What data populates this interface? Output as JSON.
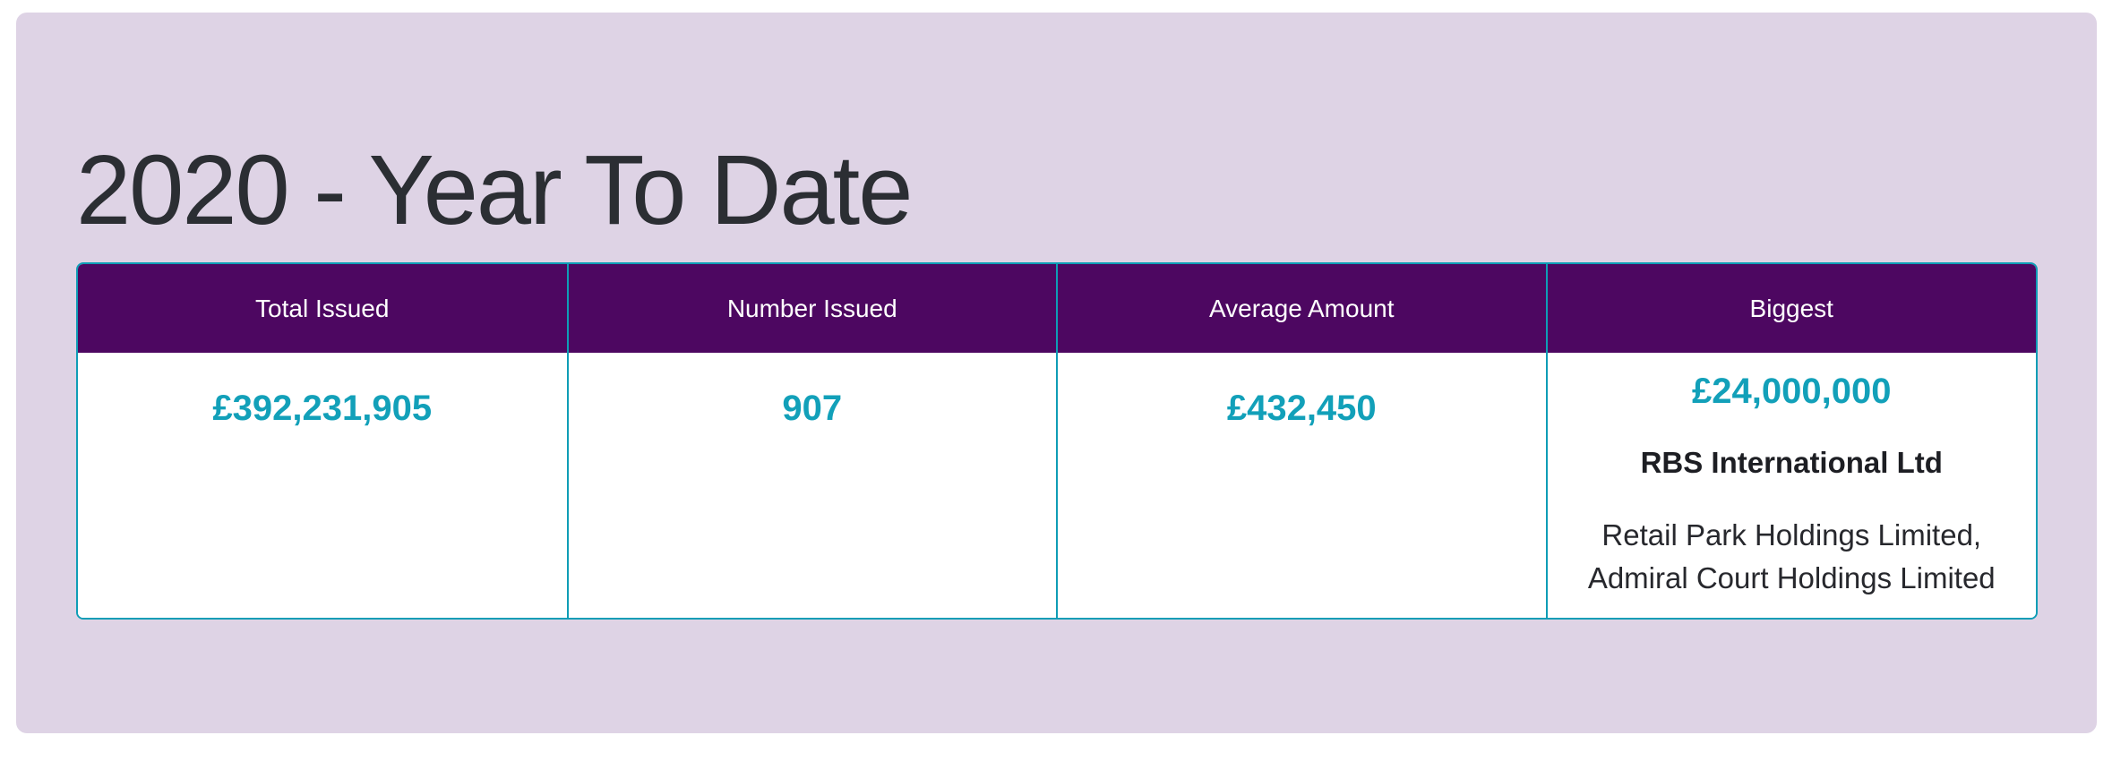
{
  "title": "2020 - Year To Date",
  "colors": {
    "panel_background": "#ded3e5",
    "header_background": "#4d0761",
    "header_text": "#ffffff",
    "accent_teal": "#12a0b9",
    "table_border": "#0f9db6",
    "title_text": "#2b2e33"
  },
  "table": {
    "columns": [
      "Total Issued",
      "Number Issued",
      "Average Amount",
      "Biggest"
    ],
    "total_issued": "£392,231,905",
    "number_issued": "907",
    "average_amount": "£432,450",
    "biggest": {
      "amount": "£24,000,000",
      "issuer": "RBS International Ltd",
      "recipients": "Retail Park Holdings Limited, Admiral Court Holdings Limited"
    }
  },
  "chart_data": {
    "type": "table",
    "title": "2020 - Year To Date",
    "columns": [
      "Total Issued",
      "Number Issued",
      "Average Amount",
      "Biggest"
    ],
    "rows": [
      {
        "total_issued_gbp": 392231905,
        "number_issued": 907,
        "average_amount_gbp": 432450,
        "biggest_amount_gbp": 24000000,
        "biggest_issuer": "RBS International Ltd",
        "biggest_recipients": "Retail Park Holdings Limited, Admiral Court Holdings Limited"
      }
    ]
  }
}
